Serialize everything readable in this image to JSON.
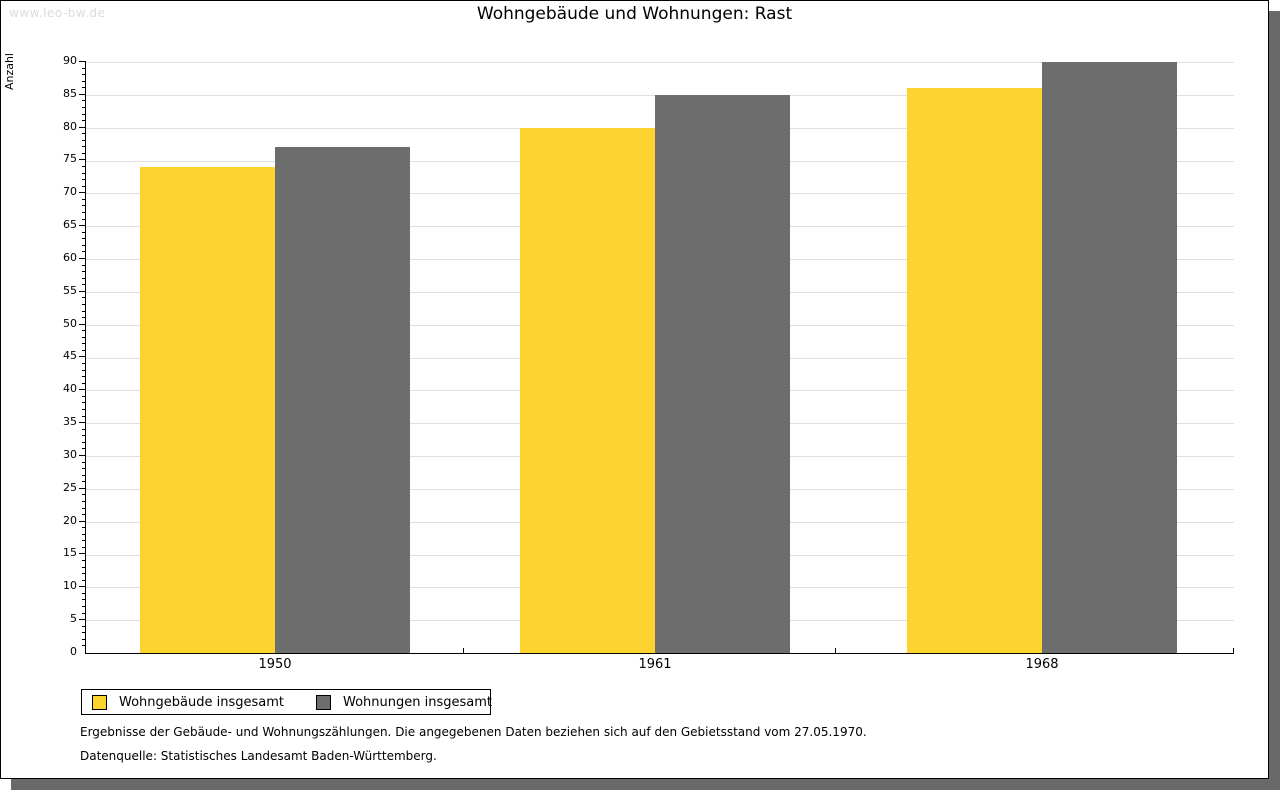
{
  "watermark": "www.leo-bw.de",
  "title": "Wohngebäude und Wohnungen: Rast",
  "chart_data": {
    "type": "bar",
    "title": "Wohngebäude und Wohnungen: Rast",
    "ylabel": "Anzahl",
    "xlabel": "",
    "ylim": [
      0,
      90
    ],
    "ytick_step": 5,
    "minor_tick_step": 1,
    "grid": true,
    "legend_position": "bottom-left",
    "categories": [
      "1950",
      "1961",
      "1968"
    ],
    "series": [
      {
        "name": "Wohngebäude insgesamt",
        "color": "#fcd32f",
        "values": [
          74,
          80,
          86
        ]
      },
      {
        "name": "Wohnungen insgesamt",
        "color": "#6d6d6d",
        "values": [
          77,
          85,
          90
        ]
      }
    ]
  },
  "footer": {
    "line1": "Ergebnisse der Gebäude- und Wohnungszählungen. Die angegebenen Daten beziehen sich auf den Gebietsstand vom 27.05.1970.",
    "line2": "Datenquelle: Statistisches Landesamt Baden-Württemberg."
  },
  "colors": {
    "grid": "#e0e0e0",
    "axis": "#000000",
    "shadow": "#696969",
    "watermark": "#dcdcdc"
  }
}
